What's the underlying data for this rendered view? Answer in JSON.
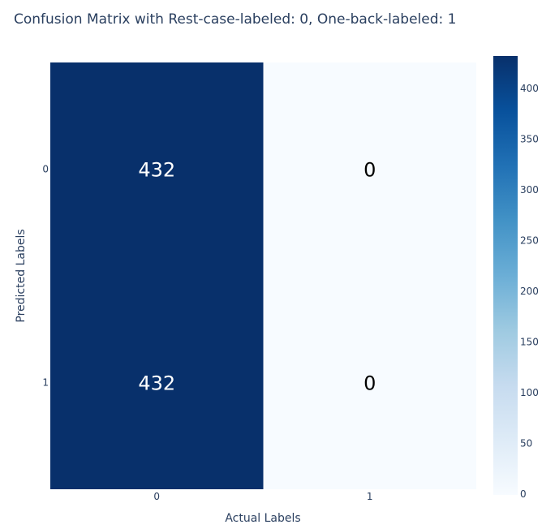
{
  "chart_data": {
    "type": "heatmap",
    "title": "Confusion Matrix with Rest-case-labeled: 0, One-back-labeled: 1",
    "xlabel": "Actual Labels",
    "ylabel": "Predicted Labels",
    "x_categories": [
      "0",
      "1"
    ],
    "y_categories": [
      "0",
      "1"
    ],
    "z": [
      [
        432,
        0
      ],
      [
        432,
        0
      ]
    ],
    "text": [
      [
        "432",
        "0"
      ],
      [
        "432",
        "0"
      ]
    ],
    "colorscale": "Blues",
    "zmin": 0,
    "zmax": 432,
    "colorbar_ticks": [
      "0",
      "50",
      "100",
      "150",
      "200",
      "250",
      "300",
      "350",
      "400"
    ],
    "colors": {
      "low": "#f7fbff",
      "high": "#08306b",
      "text_dark": "#000000",
      "text_light": "#ffffff",
      "font": "#2a3f5f"
    }
  }
}
